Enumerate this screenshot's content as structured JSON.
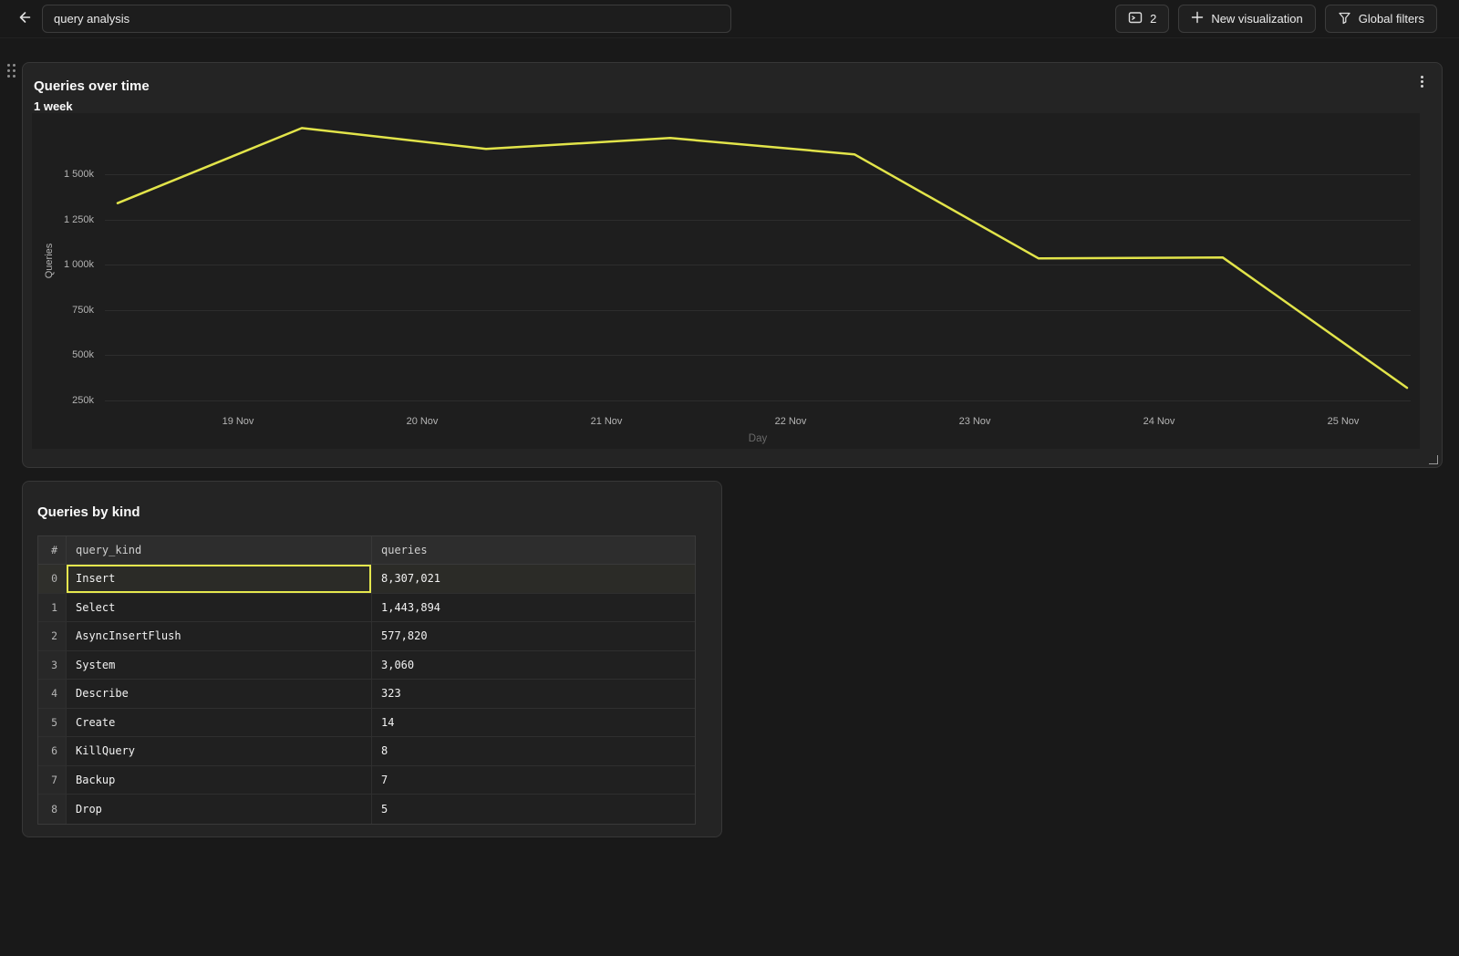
{
  "topbar": {
    "title_value": "query analysis",
    "panels_button_count": "2",
    "new_visualization_label": "New visualization",
    "global_filters_label": "Global filters"
  },
  "icons": {
    "back": "arrow-left",
    "panels": "console-window",
    "new_visualization": "plus",
    "global_filters": "funnel",
    "card_menu": "kebab-vertical",
    "drag": "grip-dots",
    "resize": "corner-resize"
  },
  "chart_card": {
    "title": "Queries over time",
    "subtitle": "1 week"
  },
  "chart_data": {
    "type": "line",
    "title": "Queries over time",
    "subtitle": "1 week",
    "xlabel": "Day",
    "ylabel": "Queries",
    "x_axis_type": "time",
    "x_tick_labels": [
      "19 Nov",
      "20 Nov",
      "21 Nov",
      "22 Nov",
      "23 Nov",
      "24 Nov",
      "25 Nov"
    ],
    "y_tick_labels": [
      "250k",
      "500k",
      "750k",
      "1 000k",
      "1 250k",
      "1 500k"
    ],
    "y_tick_range_k": [
      250,
      1500
    ],
    "grid": "horizontal",
    "legend": "none",
    "line_color": "#e2e44a",
    "series": [
      {
        "name": "Queries",
        "x": [
          "18 Nov",
          "19 Nov",
          "20 Nov",
          "21 Nov",
          "22 Nov",
          "23 Nov",
          "24 Nov",
          "25 Nov"
        ],
        "values_k": [
          1340,
          1755,
          1640,
          1700,
          1610,
          1035,
          1040,
          320
        ]
      }
    ]
  },
  "table_card": {
    "title": "Queries by kind",
    "columns": [
      "#",
      "query_kind",
      "queries"
    ],
    "rows": [
      {
        "index": "0",
        "query_kind": "Insert",
        "queries": "8,307,021",
        "selected": true
      },
      {
        "index": "1",
        "query_kind": "Select",
        "queries": "1,443,894",
        "selected": false
      },
      {
        "index": "2",
        "query_kind": "AsyncInsertFlush",
        "queries": "577,820",
        "selected": false
      },
      {
        "index": "3",
        "query_kind": "System",
        "queries": "3,060",
        "selected": false
      },
      {
        "index": "4",
        "query_kind": "Describe",
        "queries": "323",
        "selected": false
      },
      {
        "index": "5",
        "query_kind": "Create",
        "queries": "14",
        "selected": false
      },
      {
        "index": "6",
        "query_kind": "KillQuery",
        "queries": "8",
        "selected": false
      },
      {
        "index": "7",
        "query_kind": "Backup",
        "queries": "7",
        "selected": false
      },
      {
        "index": "8",
        "query_kind": "Drop",
        "queries": "5",
        "selected": false
      }
    ]
  },
  "colors": {
    "page_bg": "#191919",
    "card_bg": "#242424",
    "plot_bg": "#1e1e1e",
    "accent_yellow": "#e2e44a",
    "selection_border": "#e5e74d"
  }
}
